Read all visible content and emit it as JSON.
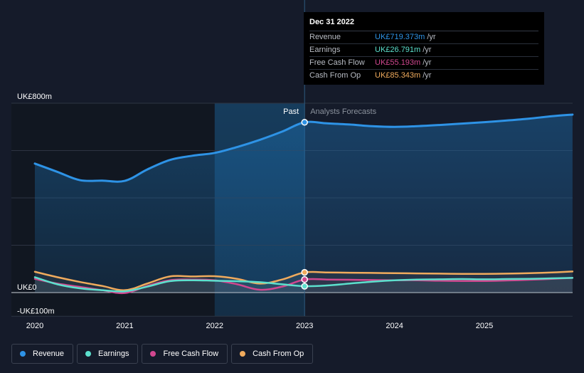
{
  "chart_data": {
    "type": "line",
    "title": "",
    "xlabel": "",
    "ylabel": "",
    "y_unit_labels": [
      "UK£800m",
      "UK£0",
      "-UK£100m"
    ],
    "y_unit_values": [
      800,
      0,
      -100
    ],
    "ylim": [
      -100,
      800
    ],
    "xlim": [
      2020,
      2025.98
    ],
    "x_ticks": [
      2020,
      2021,
      2022,
      2023,
      2024,
      2025
    ],
    "x_tick_labels": [
      "2020",
      "2021",
      "2022",
      "2023",
      "2024",
      "2025"
    ],
    "divider_x": 2023,
    "past_highlight_start": 2022,
    "region_labels": {
      "past": "Past",
      "forecast": "Analysts Forecasts"
    },
    "series": [
      {
        "name": "Revenue",
        "key": "revenue",
        "color": "#2e93e6",
        "fill": true,
        "x": [
          2020,
          2020.25,
          2020.5,
          2020.75,
          2021,
          2021.25,
          2021.5,
          2021.75,
          2022,
          2022.25,
          2022.5,
          2022.75,
          2023,
          2023.25,
          2023.5,
          2023.75,
          2024,
          2024.25,
          2024.5,
          2024.75,
          2025,
          2025.25,
          2025.5,
          2025.75,
          2025.98
        ],
        "values": [
          545,
          510,
          475,
          473,
          472,
          520,
          560,
          578,
          590,
          615,
          645,
          680,
          719,
          715,
          710,
          703,
          700,
          703,
          708,
          714,
          720,
          727,
          735,
          745,
          752
        ]
      },
      {
        "name": "Earnings",
        "key": "earnings",
        "color": "#5ce0cd",
        "fill": false,
        "x": [
          2020,
          2020.25,
          2020.5,
          2020.75,
          2021,
          2021.25,
          2021.5,
          2021.75,
          2022,
          2022.25,
          2022.5,
          2022.75,
          2023,
          2023.25,
          2023.5,
          2023.75,
          2024,
          2024.25,
          2024.5,
          2024.75,
          2025,
          2025.25,
          2025.5,
          2025.75,
          2025.98
        ],
        "values": [
          65,
          35,
          18,
          10,
          5,
          25,
          48,
          52,
          50,
          48,
          44,
          35,
          27,
          30,
          38,
          46,
          52,
          55,
          56,
          57,
          56,
          57,
          58,
          60,
          62
        ]
      },
      {
        "name": "Free Cash Flow",
        "key": "free_cash_flow",
        "color": "#d1478f",
        "fill": false,
        "x": [
          2020,
          2020.25,
          2020.5,
          2020.75,
          2021,
          2021.25,
          2021.5,
          2021.75,
          2022,
          2022.25,
          2022.5,
          2022.75,
          2023,
          2023.25,
          2023.5,
          2023.75,
          2024,
          2024.25,
          2024.5,
          2024.75,
          2025,
          2025.25,
          2025.5,
          2025.75,
          2025.98
        ],
        "values": [
          58,
          38,
          24,
          10,
          -2,
          28,
          52,
          55,
          52,
          35,
          12,
          25,
          55,
          55,
          54,
          53,
          52,
          52,
          50,
          49,
          49,
          51,
          54,
          58,
          62
        ]
      },
      {
        "name": "Cash From Op",
        "key": "cash_from_op",
        "color": "#f0ab5d",
        "fill": false,
        "x": [
          2020,
          2020.25,
          2020.5,
          2020.75,
          2021,
          2021.25,
          2021.5,
          2021.75,
          2022,
          2022.25,
          2022.5,
          2022.75,
          2023,
          2023.25,
          2023.5,
          2023.75,
          2024,
          2024.25,
          2024.5,
          2024.75,
          2025,
          2025.25,
          2025.5,
          2025.75,
          2025.98
        ],
        "values": [
          88,
          65,
          45,
          28,
          10,
          38,
          68,
          68,
          69,
          58,
          38,
          55,
          85,
          85,
          84,
          83,
          82,
          81,
          80,
          79,
          79,
          80,
          82,
          85,
          89
        ]
      }
    ],
    "tooltip": {
      "date": "Dec 31 2022",
      "x": 2023,
      "rows": [
        {
          "key": "revenue",
          "name": "Revenue",
          "value": "UK£719.373m",
          "unit": "/yr",
          "color": "#2e93e6",
          "y": 719.373
        },
        {
          "key": "earnings",
          "name": "Earnings",
          "value": "UK£26.791m",
          "unit": "/yr",
          "color": "#5ce0cd",
          "y": 26.791
        },
        {
          "key": "free_cash_flow",
          "name": "Free Cash Flow",
          "value": "UK£55.193m",
          "unit": "/yr",
          "color": "#d1478f",
          "y": 55.193
        },
        {
          "key": "cash_from_op",
          "name": "Cash From Op",
          "value": "UK£85.343m",
          "unit": "/yr",
          "color": "#f0ab5d",
          "y": 85.343
        }
      ]
    },
    "legend": {
      "placement": "bottom-left",
      "items": [
        {
          "label": "Revenue",
          "color": "#2e93e6"
        },
        {
          "label": "Earnings",
          "color": "#5ce0cd"
        },
        {
          "label": "Free Cash Flow",
          "color": "#d1478f"
        },
        {
          "label": "Cash From Op",
          "color": "#f0ab5d"
        }
      ]
    }
  }
}
